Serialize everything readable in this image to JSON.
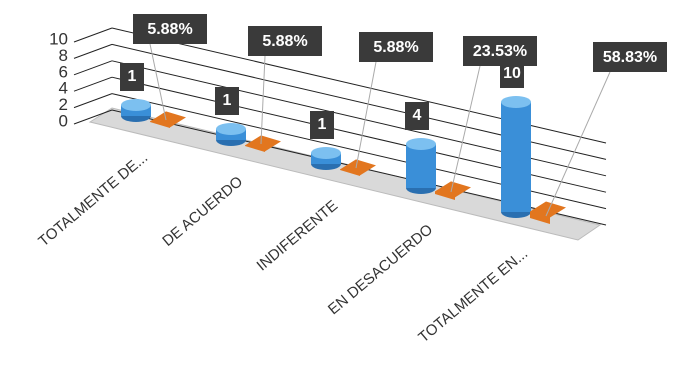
{
  "chart_data": {
    "type": "bar3d",
    "categories": [
      "TOTALMENTE DE...",
      "DE ACUERDO",
      "INDIFERENTE",
      "EN DESACUERDO",
      "TOTALMENTE EN..."
    ],
    "series": [
      {
        "color": "#3a8fd8",
        "values": [
          1,
          1,
          1,
          4,
          10
        ]
      },
      {
        "color": "#e2761f",
        "values": [
          0.0588,
          0.0588,
          0.0588,
          0.2353,
          0.5883
        ],
        "value_labels": [
          "5.88%",
          "5.88%",
          "5.88%",
          "23.53%",
          "58.83%"
        ]
      }
    ],
    "ylim": [
      0,
      10
    ],
    "yticks": [
      0,
      2,
      4,
      6,
      8,
      10
    ],
    "grid": true
  }
}
